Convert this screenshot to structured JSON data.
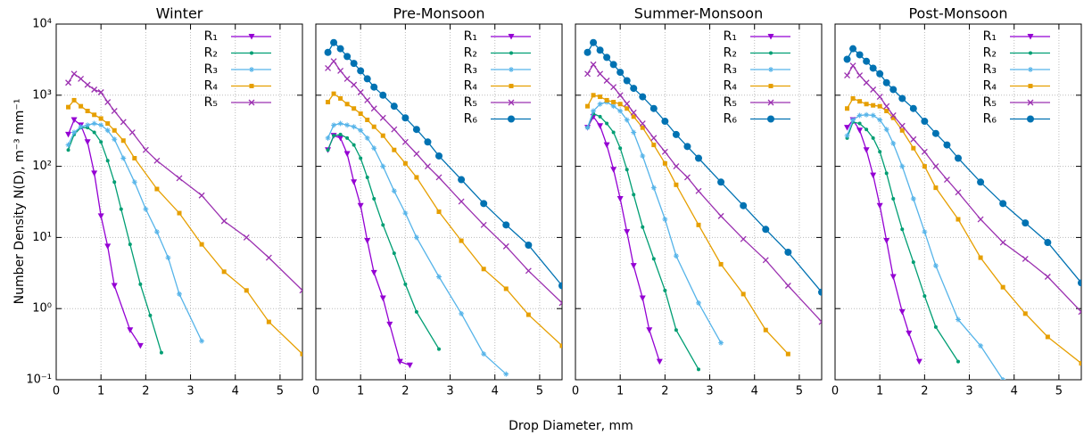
{
  "shared": {
    "xlabel": "Drop Diameter, mm",
    "ylabel": "Number Density N(D), m⁻³ mm⁻¹"
  },
  "chart_data": [
    {
      "type": "line",
      "title": "Winter",
      "log_y": true,
      "grid": true,
      "legend": "top-right",
      "xlim": [
        0,
        5.5
      ],
      "ylim": [
        0.1,
        10000
      ],
      "xticks": [
        0,
        1,
        2,
        3,
        4,
        5
      ],
      "yticks": [
        {
          "value": 0.1,
          "label": "10⁻¹"
        },
        {
          "value": 1,
          "label": "10⁰"
        },
        {
          "value": 10,
          "label": "10¹"
        },
        {
          "value": 100,
          "label": "10²"
        },
        {
          "value": 1000,
          "label": "10³"
        },
        {
          "value": 10000,
          "label": "10⁴"
        }
      ],
      "series": [
        {
          "name": "R₁",
          "color": "#9400d3",
          "marker": "triangle",
          "x": [
            0.27,
            0.4,
            0.55,
            0.7,
            0.85,
            1.0,
            1.15,
            1.3,
            1.65,
            1.88
          ],
          "values": [
            280,
            450,
            380,
            220,
            80,
            20,
            7.5,
            2.1,
            0.5,
            0.3
          ]
        },
        {
          "name": "R₂",
          "color": "#009e73",
          "marker": "dot",
          "x": [
            0.27,
            0.4,
            0.55,
            0.7,
            0.85,
            1.0,
            1.15,
            1.3,
            1.45,
            1.65,
            1.88,
            2.1,
            2.35
          ],
          "values": [
            170,
            280,
            350,
            350,
            300,
            220,
            120,
            60,
            25,
            8,
            2.2,
            0.8,
            0.24
          ]
        },
        {
          "name": "R₃",
          "color": "#56b4e9",
          "marker": "star",
          "x": [
            0.27,
            0.4,
            0.55,
            0.7,
            0.85,
            1.0,
            1.15,
            1.3,
            1.5,
            1.75,
            2.0,
            2.25,
            2.5,
            2.75,
            3.25
          ],
          "values": [
            200,
            300,
            360,
            380,
            400,
            380,
            320,
            240,
            130,
            60,
            25,
            12,
            5.2,
            1.6,
            0.35
          ]
        },
        {
          "name": "R₄",
          "color": "#e69f00",
          "marker": "square",
          "x": [
            0.27,
            0.4,
            0.55,
            0.7,
            0.85,
            1.0,
            1.15,
            1.3,
            1.5,
            1.75,
            2.25,
            2.75,
            3.25,
            3.75,
            4.25,
            4.75,
            5.5
          ],
          "values": [
            680,
            850,
            700,
            600,
            530,
            470,
            400,
            320,
            230,
            130,
            48,
            22,
            8,
            3.3,
            1.8,
            0.65,
            0.23
          ]
        },
        {
          "name": "R₅",
          "color": "#9b30b0",
          "marker": "cross",
          "x": [
            0.27,
            0.4,
            0.55,
            0.7,
            0.85,
            1.0,
            1.15,
            1.3,
            1.5,
            1.7,
            2.0,
            2.25,
            2.75,
            3.25,
            3.75,
            4.25,
            4.75,
            5.5
          ],
          "values": [
            1500,
            2000,
            1700,
            1400,
            1200,
            1100,
            800,
            600,
            420,
            300,
            170,
            120,
            68,
            39,
            17,
            10,
            5.2,
            1.8
          ]
        }
      ]
    },
    {
      "type": "line",
      "title": "Pre-Monsoon",
      "log_y": true,
      "grid": true,
      "legend": "top-right",
      "xlim": [
        0,
        5.5
      ],
      "ylim": [
        0.1,
        10000
      ],
      "xticks": [
        0,
        1,
        2,
        3,
        4,
        5
      ],
      "series": [
        {
          "name": "R₁",
          "color": "#9400d3",
          "marker": "triangle",
          "x": [
            0.27,
            0.4,
            0.55,
            0.7,
            0.85,
            1.0,
            1.15,
            1.3,
            1.5,
            1.65,
            1.88,
            2.1
          ],
          "values": [
            170,
            270,
            250,
            150,
            60,
            28,
            9,
            3.2,
            1.4,
            0.6,
            0.18,
            0.16
          ]
        },
        {
          "name": "R₂",
          "color": "#009e73",
          "marker": "dot",
          "x": [
            0.27,
            0.4,
            0.55,
            0.7,
            0.85,
            1.0,
            1.15,
            1.3,
            1.5,
            1.75,
            2.0,
            2.25,
            2.75
          ],
          "values": [
            170,
            270,
            280,
            250,
            200,
            130,
            70,
            35,
            15,
            6,
            2.2,
            0.9,
            0.27
          ]
        },
        {
          "name": "R₃",
          "color": "#56b4e9",
          "marker": "star",
          "x": [
            0.27,
            0.4,
            0.55,
            0.7,
            0.85,
            1.0,
            1.15,
            1.3,
            1.5,
            1.75,
            2.0,
            2.25,
            2.75,
            3.25,
            3.75,
            4.25
          ],
          "values": [
            250,
            380,
            400,
            380,
            360,
            320,
            250,
            180,
            100,
            45,
            22,
            10,
            2.8,
            0.85,
            0.23,
            0.12
          ]
        },
        {
          "name": "R₄",
          "color": "#e69f00",
          "marker": "square",
          "x": [
            0.27,
            0.4,
            0.55,
            0.7,
            0.85,
            1.0,
            1.15,
            1.3,
            1.5,
            1.75,
            2.0,
            2.25,
            2.75,
            3.25,
            3.75,
            4.25,
            4.75,
            5.5
          ],
          "values": [
            800,
            1050,
            900,
            750,
            650,
            550,
            450,
            360,
            270,
            170,
            110,
            70,
            23,
            9,
            3.6,
            1.9,
            0.82,
            0.3
          ]
        },
        {
          "name": "R₅",
          "color": "#9b30b0",
          "marker": "cross",
          "x": [
            0.27,
            0.4,
            0.55,
            0.7,
            0.85,
            1.0,
            1.15,
            1.3,
            1.5,
            1.75,
            2.0,
            2.25,
            2.5,
            2.75,
            3.25,
            3.75,
            4.25,
            4.75,
            5.5
          ],
          "values": [
            2400,
            3000,
            2200,
            1700,
            1400,
            1100,
            850,
            650,
            480,
            330,
            220,
            150,
            100,
            70,
            32,
            15,
            7.5,
            3.4,
            1.2
          ]
        },
        {
          "name": "R₆",
          "color": "#0072b2",
          "marker": "circle",
          "x": [
            0.27,
            0.4,
            0.55,
            0.7,
            0.85,
            1.0,
            1.15,
            1.3,
            1.5,
            1.75,
            2.0,
            2.25,
            2.5,
            2.75,
            3.25,
            3.75,
            4.25,
            4.75,
            5.5
          ],
          "values": [
            4000,
            5500,
            4500,
            3500,
            2800,
            2200,
            1700,
            1300,
            1000,
            700,
            480,
            330,
            220,
            140,
            65,
            30,
            15,
            7.8,
            2.1
          ]
        }
      ]
    },
    {
      "type": "line",
      "title": "Summer-Monsoon",
      "log_y": true,
      "grid": true,
      "legend": "top-right",
      "xlim": [
        0,
        5.5
      ],
      "ylim": [
        0.1,
        10000
      ],
      "xticks": [
        0,
        1,
        2,
        3,
        4,
        5
      ],
      "series": [
        {
          "name": "R₁",
          "color": "#9400d3",
          "marker": "triangle",
          "x": [
            0.27,
            0.4,
            0.55,
            0.7,
            0.85,
            1.0,
            1.15,
            1.3,
            1.5,
            1.65,
            1.88
          ],
          "values": [
            350,
            500,
            370,
            200,
            90,
            35,
            12,
            4,
            1.4,
            0.5,
            0.18
          ]
        },
        {
          "name": "R₂",
          "color": "#009e73",
          "marker": "dot",
          "x": [
            0.27,
            0.4,
            0.55,
            0.7,
            0.85,
            1.0,
            1.15,
            1.3,
            1.5,
            1.75,
            2.0,
            2.25,
            2.75
          ],
          "values": [
            350,
            550,
            500,
            400,
            300,
            180,
            90,
            40,
            14,
            5,
            1.8,
            0.5,
            0.14
          ]
        },
        {
          "name": "R₃",
          "color": "#56b4e9",
          "marker": "star",
          "x": [
            0.27,
            0.4,
            0.55,
            0.7,
            0.85,
            1.0,
            1.15,
            1.3,
            1.5,
            1.75,
            2.0,
            2.25,
            2.75,
            3.25
          ],
          "values": [
            350,
            600,
            750,
            800,
            700,
            600,
            450,
            300,
            140,
            50,
            18,
            5.5,
            1.2,
            0.33
          ]
        },
        {
          "name": "R₄",
          "color": "#e69f00",
          "marker": "square",
          "x": [
            0.27,
            0.4,
            0.55,
            0.7,
            0.85,
            1.0,
            1.15,
            1.3,
            1.5,
            1.75,
            2.0,
            2.25,
            2.75,
            3.25,
            3.75,
            4.25,
            4.75
          ],
          "values": [
            700,
            1000,
            950,
            850,
            800,
            750,
            650,
            500,
            350,
            200,
            110,
            55,
            15,
            4.2,
            1.6,
            0.5,
            0.23
          ]
        },
        {
          "name": "R₅",
          "color": "#9b30b0",
          "marker": "cross",
          "x": [
            0.27,
            0.4,
            0.55,
            0.7,
            0.85,
            1.0,
            1.15,
            1.3,
            1.5,
            1.75,
            2.0,
            2.25,
            2.5,
            2.75,
            3.25,
            3.75,
            4.25,
            4.75,
            5.5
          ],
          "values": [
            2000,
            2700,
            2000,
            1600,
            1300,
            1000,
            760,
            570,
            400,
            250,
            160,
            100,
            70,
            45,
            20,
            9.5,
            4.8,
            2.1,
            0.65
          ]
        },
        {
          "name": "R₆",
          "color": "#0072b2",
          "marker": "circle",
          "x": [
            0.27,
            0.4,
            0.55,
            0.7,
            0.85,
            1.0,
            1.15,
            1.3,
            1.5,
            1.75,
            2.0,
            2.25,
            2.5,
            2.75,
            3.25,
            3.75,
            4.25,
            4.75,
            5.5
          ],
          "values": [
            4000,
            5500,
            4300,
            3400,
            2700,
            2100,
            1600,
            1250,
            950,
            650,
            430,
            280,
            190,
            130,
            60,
            28,
            13,
            6.2,
            1.7
          ]
        }
      ]
    },
    {
      "type": "line",
      "title": "Post-Monsoon",
      "log_y": true,
      "grid": true,
      "legend": "top-right",
      "xlim": [
        0,
        5.5
      ],
      "ylim": [
        0.1,
        10000
      ],
      "xticks": [
        0,
        1,
        2,
        3,
        4,
        5
      ],
      "series": [
        {
          "name": "R₁",
          "color": "#9400d3",
          "marker": "triangle",
          "x": [
            0.27,
            0.4,
            0.55,
            0.7,
            0.85,
            1.0,
            1.15,
            1.3,
            1.5,
            1.65,
            1.88
          ],
          "values": [
            350,
            450,
            320,
            170,
            75,
            28,
            9,
            2.8,
            0.9,
            0.45,
            0.18
          ]
        },
        {
          "name": "R₂",
          "color": "#009e73",
          "marker": "dot",
          "x": [
            0.27,
            0.4,
            0.55,
            0.7,
            0.85,
            1.0,
            1.15,
            1.3,
            1.5,
            1.75,
            2.0,
            2.25,
            2.75
          ],
          "values": [
            250,
            420,
            400,
            330,
            250,
            160,
            80,
            35,
            13,
            4.5,
            1.5,
            0.55,
            0.18
          ]
        },
        {
          "name": "R₃",
          "color": "#56b4e9",
          "marker": "star",
          "x": [
            0.27,
            0.4,
            0.55,
            0.7,
            0.85,
            1.0,
            1.15,
            1.3,
            1.5,
            1.75,
            2.0,
            2.25,
            2.75,
            3.25,
            3.75
          ],
          "values": [
            270,
            450,
            520,
            530,
            520,
            450,
            330,
            210,
            100,
            35,
            12,
            4,
            0.7,
            0.3,
            0.1
          ]
        },
        {
          "name": "R₄",
          "color": "#e69f00",
          "marker": "square",
          "x": [
            0.27,
            0.4,
            0.55,
            0.7,
            0.85,
            1.0,
            1.15,
            1.3,
            1.5,
            1.75,
            2.0,
            2.25,
            2.75,
            3.25,
            3.75,
            4.25,
            4.75,
            5.5
          ],
          "values": [
            650,
            900,
            820,
            750,
            720,
            700,
            600,
            480,
            320,
            180,
            100,
            50,
            18,
            5.2,
            2,
            0.85,
            0.4,
            0.17
          ]
        },
        {
          "name": "R₅",
          "color": "#9b30b0",
          "marker": "cross",
          "x": [
            0.27,
            0.4,
            0.55,
            0.7,
            0.85,
            1.0,
            1.15,
            1.3,
            1.5,
            1.75,
            2.0,
            2.25,
            2.5,
            2.75,
            3.25,
            3.75,
            4.25,
            4.75,
            5.5
          ],
          "values": [
            1900,
            2600,
            1900,
            1500,
            1200,
            950,
            700,
            520,
            370,
            240,
            160,
            100,
            65,
            43,
            18,
            8.5,
            5,
            2.8,
            0.9
          ]
        },
        {
          "name": "R₆",
          "color": "#0072b2",
          "marker": "circle",
          "x": [
            0.27,
            0.4,
            0.55,
            0.7,
            0.85,
            1.0,
            1.15,
            1.3,
            1.5,
            1.75,
            2.0,
            2.25,
            2.5,
            2.75,
            3.25,
            3.75,
            4.25,
            4.75,
            5.5
          ],
          "values": [
            3200,
            4500,
            3700,
            3000,
            2400,
            2000,
            1500,
            1200,
            900,
            650,
            430,
            290,
            200,
            130,
            60,
            30,
            16,
            8.5,
            2.3
          ]
        }
      ]
    }
  ]
}
